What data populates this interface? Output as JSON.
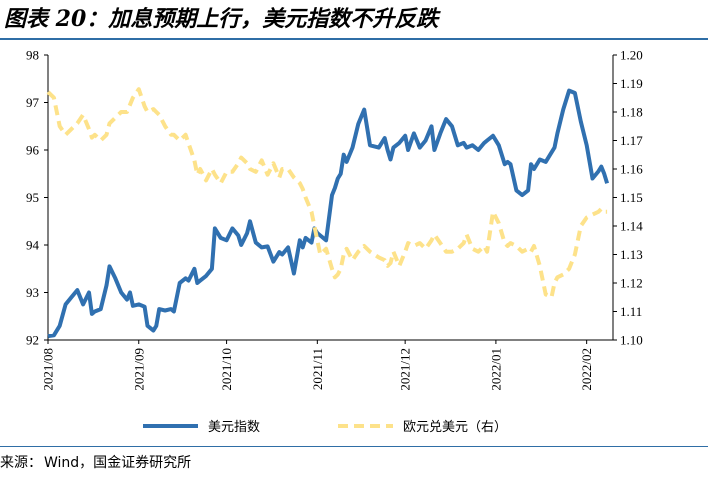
{
  "title": "图表 20：加息预期上行，美元指数不升反跌",
  "source": {
    "label": "来源：",
    "text": "Wind，国金证券研究所"
  },
  "chart_data": {
    "type": "line",
    "title": "加息预期上行，美元指数不升反跌",
    "x_tick_labels": [
      "2021/08",
      "2021/09",
      "2021/10",
      "2021/11",
      "2021/12",
      "2022/01",
      "2022/02"
    ],
    "y_left": {
      "min": 92,
      "max": 98,
      "ticks": [
        "92",
        "93",
        "94",
        "95",
        "96",
        "97",
        "98"
      ]
    },
    "y_right": {
      "min": 1.1,
      "max": 1.2,
      "ticks": [
        "1.10",
        "1.11",
        "1.12",
        "1.13",
        "1.14",
        "1.15",
        "1.16",
        "1.17",
        "1.18",
        "1.19",
        "1.20"
      ]
    },
    "x_range_days": [
      0,
      193
    ],
    "tick_days": [
      0,
      31,
      61,
      92,
      122,
      153,
      184
    ],
    "series": [
      {
        "name": "美元指数",
        "axis": "left",
        "color": "#3070b0",
        "style": "solid",
        "days": [
          0,
          2,
          4,
          6,
          8,
          10,
          12,
          14,
          15,
          16,
          18,
          20,
          21,
          23,
          25,
          27,
          28,
          29,
          31,
          33,
          34,
          36,
          37,
          38,
          40,
          42,
          43,
          45,
          47,
          48,
          50,
          51,
          52,
          54,
          56,
          57,
          59,
          61,
          63,
          65,
          66,
          68,
          69,
          71,
          73,
          75,
          77,
          79,
          80,
          82,
          84,
          86,
          87,
          88,
          90,
          91,
          92,
          93,
          95,
          97,
          98,
          99,
          100,
          101,
          102,
          104,
          106,
          108,
          110,
          113,
          115,
          116,
          117,
          118,
          120,
          122,
          123,
          125,
          127,
          129,
          131,
          132,
          134,
          136,
          138,
          140,
          142,
          143,
          145,
          147,
          149,
          150,
          152,
          154,
          156,
          157,
          158,
          160,
          162,
          164,
          165,
          166,
          168,
          170,
          172,
          173,
          174,
          176,
          178,
          180,
          182,
          184,
          186,
          188,
          189,
          190,
          191
        ],
        "values": [
          92.08,
          92.1,
          92.3,
          92.75,
          92.9,
          93.05,
          92.75,
          93.0,
          92.55,
          92.6,
          92.65,
          93.15,
          93.55,
          93.3,
          93.0,
          92.85,
          93.0,
          92.72,
          92.75,
          92.7,
          92.3,
          92.2,
          92.3,
          92.65,
          92.62,
          92.65,
          92.6,
          93.2,
          93.3,
          93.25,
          93.5,
          93.2,
          93.25,
          93.35,
          93.5,
          94.35,
          94.15,
          94.1,
          94.35,
          94.2,
          94.0,
          94.25,
          94.5,
          94.05,
          93.95,
          93.97,
          93.65,
          93.85,
          93.8,
          93.95,
          93.4,
          94.1,
          93.95,
          94.15,
          94.05,
          94.35,
          94.25,
          94.2,
          94.1,
          95.05,
          95.2,
          95.4,
          95.5,
          95.9,
          95.75,
          96.05,
          96.55,
          96.85,
          96.1,
          96.05,
          96.25,
          96.0,
          95.8,
          96.05,
          96.15,
          96.3,
          96.0,
          96.35,
          96.05,
          96.2,
          96.5,
          96.0,
          96.35,
          96.65,
          96.5,
          96.1,
          96.15,
          96.05,
          96.1,
          96.0,
          96.15,
          96.2,
          96.3,
          96.1,
          95.7,
          95.75,
          95.7,
          95.15,
          95.05,
          95.15,
          95.7,
          95.6,
          95.8,
          95.75,
          95.95,
          96.05,
          96.35,
          96.85,
          97.25,
          97.2,
          96.6,
          96.1,
          95.4,
          95.55,
          95.65,
          95.5,
          95.3
        ],
        "note": "sampled trajectory; values read from the left axis"
      },
      {
        "name": "欧元兑美元（右）",
        "axis": "right",
        "color": "#fde28a",
        "style": "dashed",
        "days": [
          0,
          2,
          4,
          6,
          8,
          10,
          12,
          14,
          15,
          16,
          18,
          20,
          21,
          23,
          25,
          27,
          29,
          31,
          33,
          34,
          36,
          37,
          38,
          40,
          42,
          43,
          45,
          47,
          48,
          50,
          51,
          52,
          54,
          56,
          57,
          59,
          61,
          63,
          65,
          66,
          68,
          69,
          71,
          73,
          75,
          77,
          79,
          80,
          82,
          84,
          86,
          87,
          88,
          90,
          91,
          92,
          93,
          95,
          97,
          98,
          99,
          100,
          101,
          102,
          104,
          106,
          108,
          110,
          113,
          115,
          116,
          117,
          118,
          120,
          122,
          123,
          125,
          127,
          129,
          131,
          132,
          134,
          136,
          138,
          140,
          142,
          143,
          145,
          147,
          149,
          150,
          152,
          154,
          156,
          157,
          158,
          160,
          162,
          164,
          165,
          166,
          168,
          170,
          172,
          173,
          174,
          176,
          178,
          180,
          182,
          184,
          186,
          188,
          189,
          190,
          191
        ],
        "values": [
          1.187,
          1.185,
          1.175,
          1.172,
          1.174,
          1.176,
          1.179,
          1.174,
          1.171,
          1.172,
          1.17,
          1.172,
          1.176,
          1.178,
          1.18,
          1.18,
          1.185,
          1.188,
          1.182,
          1.18,
          1.181,
          1.18,
          1.179,
          1.175,
          1.172,
          1.172,
          1.17,
          1.172,
          1.169,
          1.163,
          1.158,
          1.16,
          1.156,
          1.16,
          1.158,
          1.155,
          1.159,
          1.159,
          1.162,
          1.164,
          1.162,
          1.16,
          1.159,
          1.163,
          1.158,
          1.162,
          1.157,
          1.16,
          1.16,
          1.157,
          1.155,
          1.153,
          1.15,
          1.145,
          1.14,
          1.135,
          1.13,
          1.132,
          1.125,
          1.122,
          1.123,
          1.125,
          1.13,
          1.132,
          1.128,
          1.131,
          1.133,
          1.131,
          1.129,
          1.128,
          1.126,
          1.127,
          1.131,
          1.126,
          1.131,
          1.134,
          1.133,
          1.134,
          1.132,
          1.135,
          1.137,
          1.134,
          1.131,
          1.131,
          1.132,
          1.134,
          1.137,
          1.132,
          1.131,
          1.133,
          1.131,
          1.145,
          1.141,
          1.134,
          1.133,
          1.134,
          1.133,
          1.131,
          1.132,
          1.131,
          1.133,
          1.126,
          1.116,
          1.115,
          1.12,
          1.122,
          1.123,
          1.125,
          1.13,
          1.14,
          1.143,
          1.144,
          1.145,
          1.146,
          1.145,
          1.145
        ],
        "note": "sampled trajectory; values read from the right axis"
      }
    ],
    "legend": [
      "美元指数",
      "欧元兑美元（右）"
    ],
    "legend_position": "bottom",
    "grid": false
  }
}
